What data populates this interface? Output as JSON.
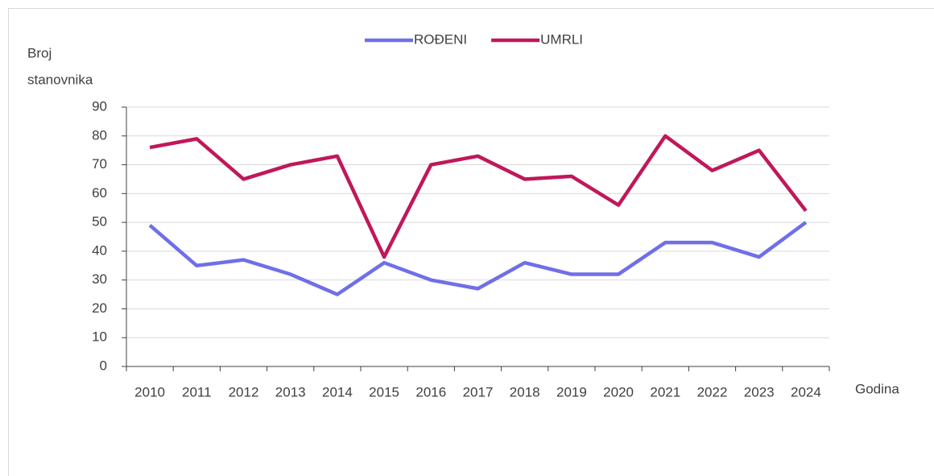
{
  "chart_data": {
    "type": "line",
    "y_label": [
      "Broj",
      "stanovnika"
    ],
    "x_label": "Godina",
    "categories": [
      "2010",
      "2011",
      "2012",
      "2013",
      "2014",
      "2015",
      "2016",
      "2017",
      "2018",
      "2019",
      "2020",
      "2021",
      "2022",
      "2023",
      "2024"
    ],
    "series": [
      {
        "name": "ROĐENI",
        "color": "#6f6fe8",
        "values": [
          49,
          35,
          37,
          32,
          25,
          36,
          30,
          27,
          36,
          32,
          32,
          43,
          43,
          38,
          50
        ]
      },
      {
        "name": "UMRLI",
        "color": "#c0185a",
        "values": [
          76,
          79,
          65,
          70,
          73,
          38,
          70,
          73,
          65,
          66,
          56,
          80,
          68,
          75,
          54
        ]
      }
    ],
    "ylim": [
      0,
      90
    ],
    "yticks": [
      0,
      10,
      20,
      30,
      40,
      50,
      60,
      70,
      80,
      90
    ],
    "grid": true,
    "legend": "top"
  }
}
